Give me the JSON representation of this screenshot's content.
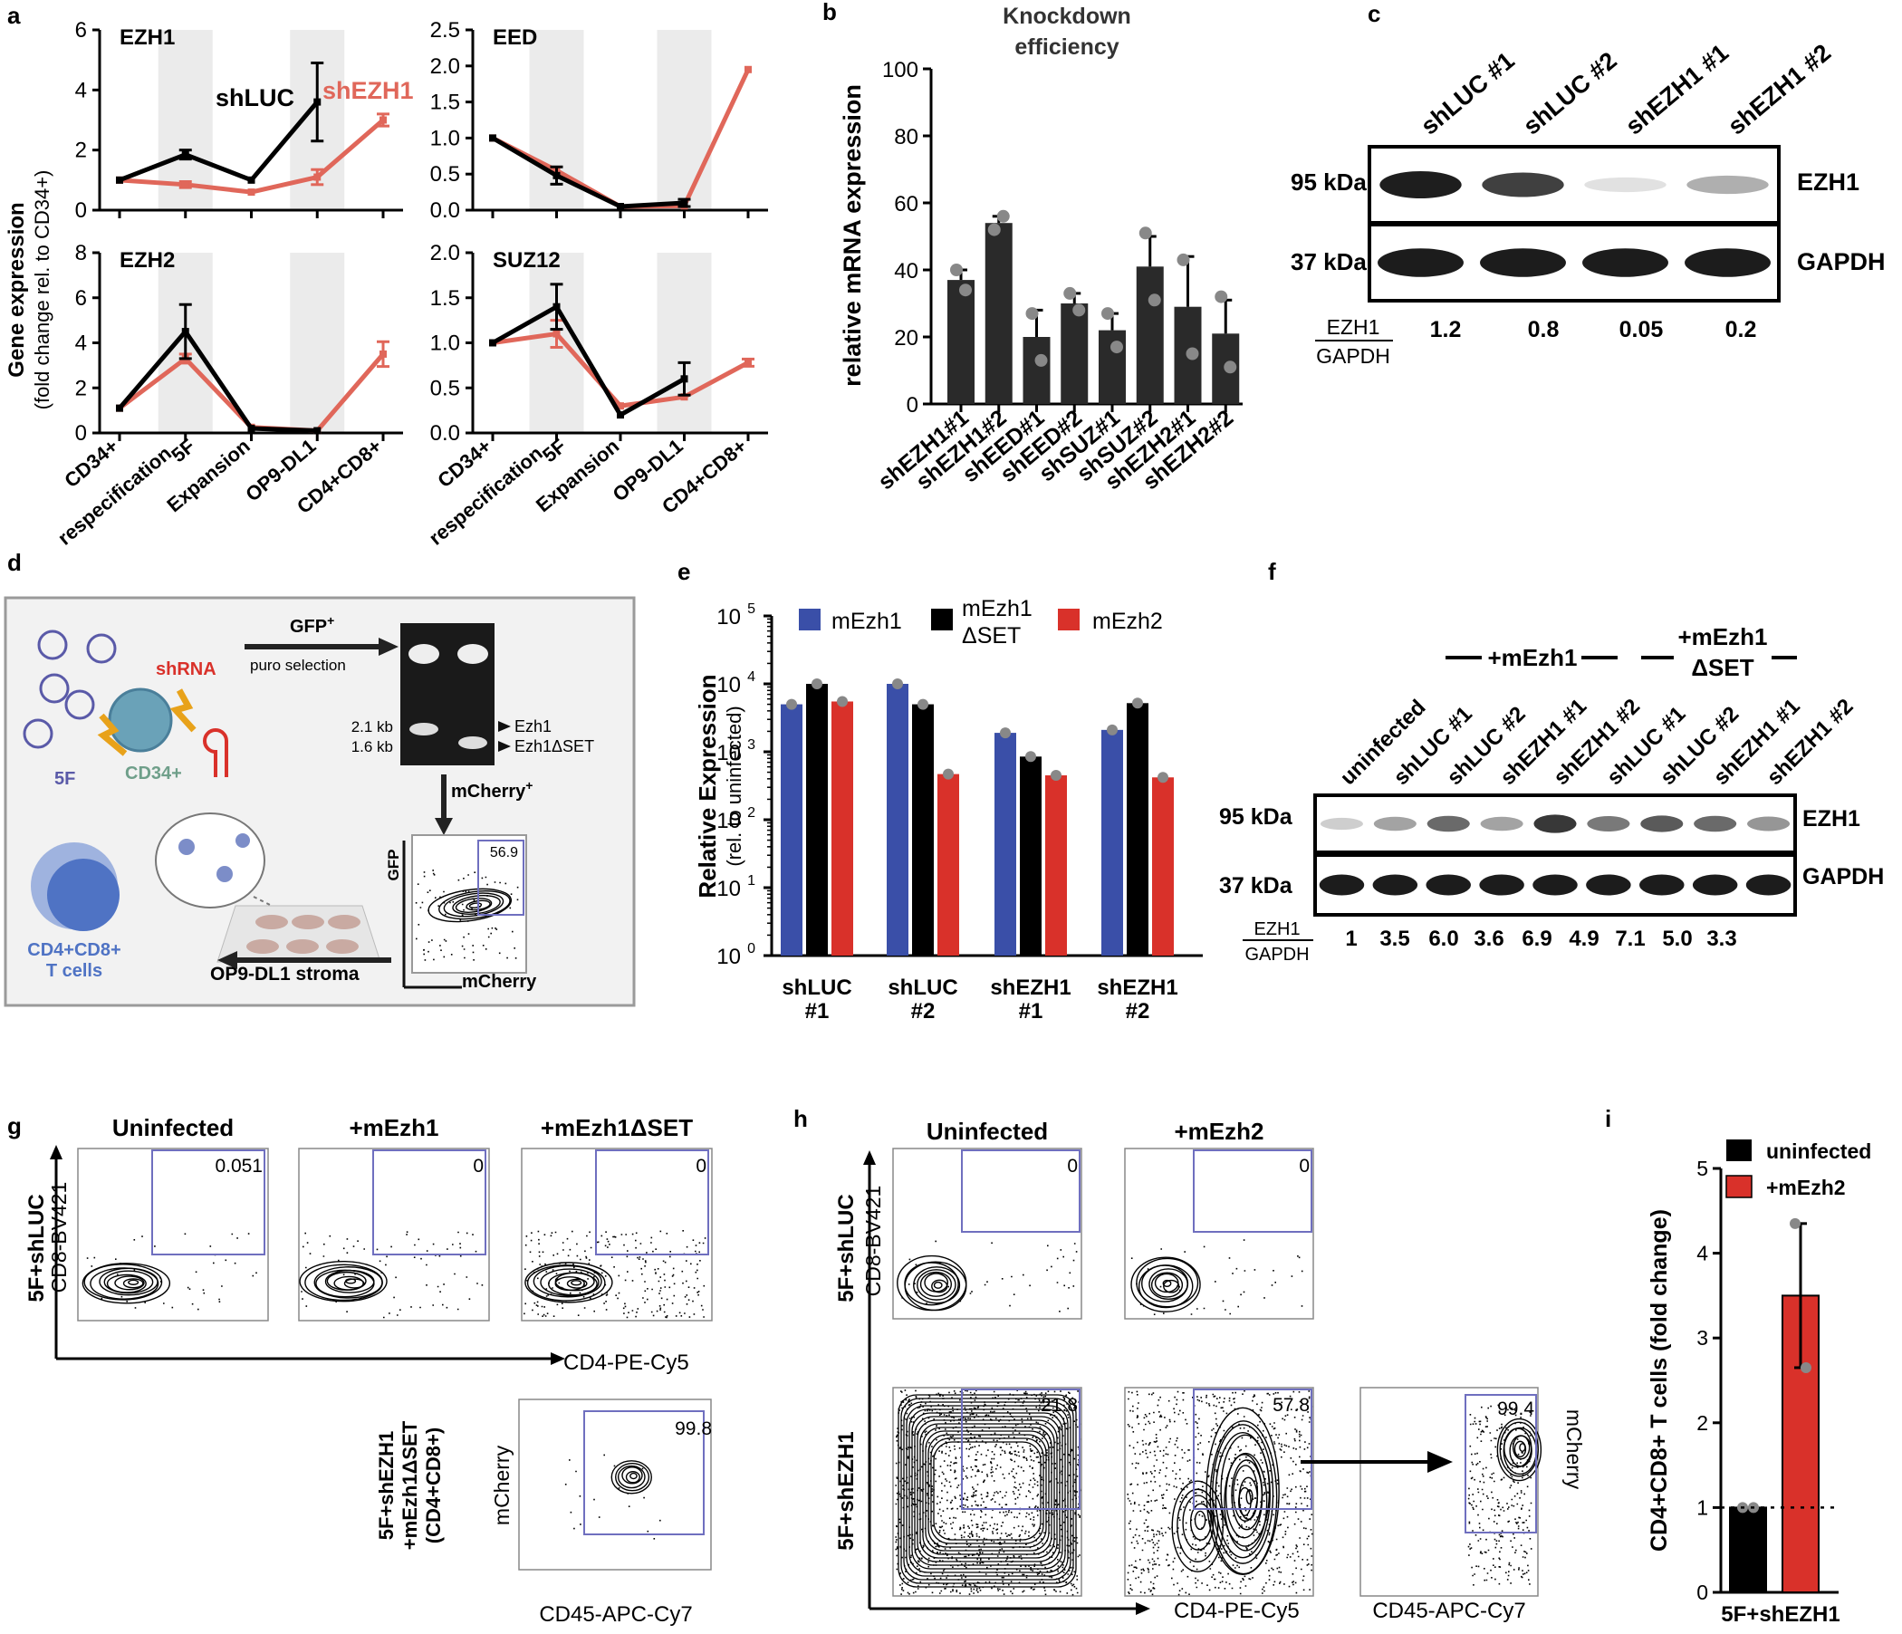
{
  "colors": {
    "black": "#000000",
    "salmon": "#e0675a",
    "band": "#ebebeb",
    "blue": "#3a4fa8",
    "red": "#d9312a",
    "bar_dark": "#2a2a2a",
    "gate": "#6f6fbf",
    "panel_d_bg": "#f2f2f2",
    "panel_d_border": "#9a9a9a",
    "orange": "#e8a21a",
    "green_label": "#6f9f8a",
    "cell_blue": "#4f73c4",
    "stroma": "#c9aaa2"
  },
  "panel_labels": {
    "a": "a",
    "b": "b",
    "c": "c",
    "d": "d",
    "e": "e",
    "f": "f",
    "g": "g",
    "h": "h",
    "i": "i"
  },
  "panel_a": {
    "ylabel1": "Gene expression",
    "ylabel2": "(fold change rel. to CD34+)",
    "series_labels": {
      "shLUC": "shLUC",
      "shEZH1": "shEZH1"
    },
    "xticks": [
      "CD34+",
      "5F",
      "respecification",
      "Expansion",
      "OP9-DL1",
      "CD4+CD8+"
    ]
  },
  "chart_data": [
    {
      "type": "line",
      "title": "EZH1",
      "categories": [
        "CD34+",
        "5F respecification",
        "Expansion",
        "OP9-DL1",
        "CD4+CD8+"
      ],
      "ylim": [
        0,
        6
      ],
      "yticks": [
        "0",
        "2",
        "4",
        "6"
      ],
      "series": [
        {
          "name": "shLUC",
          "values": [
            1,
            1.85,
            1,
            3.6,
            null
          ],
          "errors": [
            0,
            0.15,
            0,
            1.3,
            0
          ]
        },
        {
          "name": "shEZH1",
          "values": [
            1,
            0.85,
            0.6,
            1.1,
            3.0
          ],
          "errors": [
            0,
            0.1,
            0,
            0.25,
            0.2
          ]
        }
      ]
    },
    {
      "type": "line",
      "title": "EED",
      "categories": [
        "CD34+",
        "5F respecification",
        "Expansion",
        "OP9-DL1",
        "CD4+CD8+"
      ],
      "ylim": [
        0,
        2.5
      ],
      "yticks": [
        "0.0",
        "0.5",
        "1.0",
        "1.5",
        "2.0",
        "2.5"
      ],
      "series": [
        {
          "name": "shLUC",
          "values": [
            1,
            0.48,
            0.05,
            0.1,
            null
          ],
          "errors": [
            0,
            0.12,
            0,
            0.05,
            0
          ]
        },
        {
          "name": "shEZH1",
          "values": [
            1,
            0.55,
            0.05,
            0.06,
            1.95
          ],
          "errors": [
            0,
            0,
            0,
            0,
            0
          ]
        }
      ]
    },
    {
      "type": "line",
      "title": "EZH2",
      "categories": [
        "CD34+",
        "5F respecification",
        "Expansion",
        "OP9-DL1",
        "CD4+CD8+"
      ],
      "ylim": [
        0,
        8
      ],
      "yticks": [
        "0",
        "2",
        "4",
        "6",
        "8"
      ],
      "series": [
        {
          "name": "shLUC",
          "values": [
            1.1,
            4.5,
            0.2,
            0.1,
            null
          ],
          "errors": [
            0,
            1.2,
            0,
            0,
            0
          ]
        },
        {
          "name": "shEZH1",
          "values": [
            1.1,
            3.3,
            0.25,
            0.1,
            3.5
          ],
          "errors": [
            0,
            0.2,
            0,
            0,
            0.55
          ]
        }
      ]
    },
    {
      "type": "line",
      "title": "SUZ12",
      "categories": [
        "CD34+",
        "5F respecification",
        "Expansion",
        "OP9-DL1",
        "CD4+CD8+"
      ],
      "ylim": [
        0,
        2.0
      ],
      "yticks": [
        "0.0",
        "0.5",
        "1.0",
        "1.5",
        "2.0"
      ],
      "series": [
        {
          "name": "shLUC",
          "values": [
            1.0,
            1.4,
            0.2,
            0.6,
            null
          ],
          "errors": [
            0,
            0.25,
            0,
            0.18,
            0
          ]
        },
        {
          "name": "shEZH1",
          "values": [
            1.0,
            1.1,
            0.3,
            0.4,
            0.78
          ],
          "errors": [
            0,
            0.15,
            0,
            0,
            0.04
          ]
        }
      ]
    },
    {
      "type": "bar",
      "title": "Knockdown efficiency",
      "ylabel": "relative mRNA expression",
      "ylim": [
        0,
        100
      ],
      "yticks": [
        "0",
        "20",
        "40",
        "60",
        "80",
        "100"
      ],
      "categories": [
        "shEZH1#1",
        "shEZH1#2",
        "shEED#1",
        "shEED#2",
        "shSUZ#1",
        "shSUZ#2",
        "shEZH2#1",
        "shEZH2#2"
      ],
      "values": [
        37,
        54,
        20,
        30,
        22,
        41,
        29,
        21
      ],
      "errors": [
        3,
        2,
        8,
        3,
        5,
        9,
        15,
        10
      ],
      "points": [
        [
          40,
          34
        ],
        [
          52,
          56
        ],
        [
          27,
          13
        ],
        [
          33,
          28
        ],
        [
          27,
          17
        ],
        [
          51,
          31
        ],
        [
          43,
          15
        ],
        [
          32,
          11
        ]
      ]
    },
    {
      "type": "bar",
      "ylabel": "Relative Expression",
      "ylabel2": "(rel. to uninfected)",
      "yscale": "log",
      "ylim": [
        1,
        100000
      ],
      "yticks": [
        "10",
        "10",
        "10",
        "10",
        "10",
        "10"
      ],
      "ytick_exps": [
        "0",
        "1",
        "2",
        "3",
        "4",
        "5"
      ],
      "categories": [
        "shLUC #1",
        "shLUC #2",
        "shEZH1 #1",
        "shEZH1 #2"
      ],
      "series": [
        {
          "name": "mEzh1",
          "values": [
            5000,
            10000,
            1900,
            2100
          ]
        },
        {
          "name": "mEzh1 ΔSET",
          "values": [
            10000,
            5000,
            850,
            5200
          ]
        },
        {
          "name": "mEzh2",
          "values": [
            5500,
            470,
            450,
            420
          ]
        }
      ]
    },
    {
      "type": "bar",
      "ylabel": "CD4+CD8+ T cells (fold change)",
      "ylim": [
        0,
        5
      ],
      "yticks": [
        "0",
        "1",
        "2",
        "3",
        "4",
        "5"
      ],
      "categories": [
        "5F+shEZH1"
      ],
      "series": [
        {
          "name": "uninfected",
          "values": [
            1
          ],
          "points": [
            1,
            1
          ]
        },
        {
          "name": "+mEzh2",
          "values": [
            3.5
          ],
          "errors": [
            0.85
          ],
          "points": [
            4.35,
            2.65
          ]
        }
      ]
    }
  ],
  "panel_b": {
    "title_line1": "Knockdown",
    "title_line2": "efficiency"
  },
  "panel_c": {
    "lanes": [
      "shLUC #1",
      "shLUC #2",
      "shEZH1 #1",
      "shEZH1 #2"
    ],
    "kda_top": "95 kDa",
    "kda_bottom": "37 kDa",
    "band_top": "EZH1",
    "band_bottom": "GAPDH",
    "ratio_num": "EZH1",
    "ratio_den": "GAPDH",
    "ratios": [
      "1.2",
      "0.8",
      "0.05",
      "0.2"
    ],
    "ezh1_intensity": [
      1.0,
      0.8,
      0.08,
      0.35
    ]
  },
  "panel_d": {
    "shrna": "shRNA",
    "gfp_label": "GFP",
    "gfp_sup": "+",
    "puro": "puro selection",
    "fivef": "5F",
    "cd34": "CD34+",
    "kb1": "2.1 kb",
    "kb2": "1.6 kb",
    "ezh1": "Ezh1",
    "ezh1dset": "Ezh1ΔSET",
    "mcherry": "mCherry",
    "mcherry_sup": "+",
    "gate_value": "56.9",
    "axis_gfp": "GFP",
    "axis_mcherry": "mCherry",
    "stroma": "OP9-DL1 stroma",
    "tcells1": "CD4+CD8+",
    "tcells2": "T cells"
  },
  "panel_e": {
    "legend": [
      "mEzh1",
      "mEzh1",
      "ΔSET",
      "mEzh2"
    ],
    "xcats": [
      [
        "shLUC",
        "#1"
      ],
      [
        "shLUC",
        "#2"
      ],
      [
        "shEZH1",
        "#1"
      ],
      [
        "shEZH1",
        "#2"
      ]
    ]
  },
  "panel_f": {
    "group1": "+mEzh1",
    "group2a": "+mEzh1",
    "group2b": "ΔSET",
    "lanes": [
      "uninfected",
      "shLUC #1",
      "shLUC #2",
      "shEZH1 #1",
      "shEZH1 #2",
      "shLUC #1",
      "shLUC #2",
      "shEZH1 #1",
      "shEZH1 #2"
    ],
    "kda_top": "95  kDa",
    "kda_bottom": "37  kDa",
    "band_top": "EZH1",
    "band_bottom": "GAPDH",
    "ratio_num": "EZH1",
    "ratio_den": "GAPDH",
    "ratios": [
      "1",
      "3.5",
      "6.0",
      "3.6",
      "6.9",
      "4.9",
      "7.1",
      "5.0",
      "3.3"
    ],
    "ezh1_intensity": [
      0.2,
      0.4,
      0.6,
      0.4,
      0.85,
      0.55,
      0.65,
      0.6,
      0.45
    ]
  },
  "panel_g": {
    "cols": [
      "Uninfected",
      "+mEzh1",
      "+mEzh1ΔSET"
    ],
    "row1": "5F+shLUC",
    "row2a": "5F+shEZH1",
    "row2b": "+mEzh1ΔSET",
    "row2c": "(CD4+CD8+)",
    "gate_values": [
      "0.051",
      "0",
      "0"
    ],
    "gate_bottom": "99.8",
    "y_axis": "CD8-BV421",
    "x_axis": "CD4-PE-Cy5",
    "y_axis2": "mCherry",
    "x_axis2": "CD45-APC-Cy7"
  },
  "panel_h": {
    "cols": [
      "Uninfected",
      "+mEzh2"
    ],
    "row1": "5F+shLUC",
    "row2": "5F+shEZH1",
    "gate_top": [
      "0",
      "0"
    ],
    "gate_bottom": [
      "21.8",
      "57.8"
    ],
    "gate_right": "99.4",
    "y_axis": "CD8-BV421",
    "x_axis": "CD4-PE-Cy5",
    "y_axis2": "mCherry",
    "x_axis2": "CD45-APC-Cy7"
  },
  "panel_i": {
    "legend": [
      "uninfected",
      "+mEzh2"
    ],
    "xlabel": "5F+shEZH1"
  }
}
